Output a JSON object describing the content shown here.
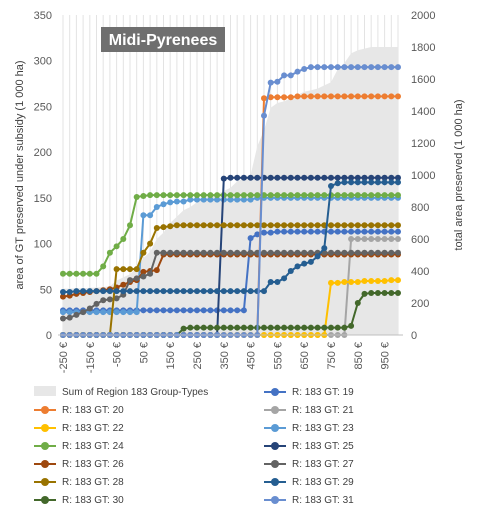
{
  "chart_data": {
    "type": "line",
    "title": "Midi-Pyrenees",
    "ylabel": "area of GT preserved under subsidy (1 000 ha)",
    "y2label": "total area preserved (1 000 ha)",
    "xlabel": "",
    "ylim": [
      0,
      350
    ],
    "y2lim": [
      0,
      2000
    ],
    "yticks": [
      0,
      50,
      100,
      150,
      200,
      250,
      300,
      350
    ],
    "y2ticks": [
      0,
      200,
      400,
      600,
      800,
      1000,
      1200,
      1400,
      1600,
      1800,
      2000
    ],
    "x": [
      -250,
      -225,
      -200,
      -175,
      -150,
      -125,
      -100,
      -75,
      -50,
      -25,
      0,
      25,
      50,
      75,
      100,
      125,
      150,
      175,
      200,
      225,
      250,
      275,
      300,
      325,
      350,
      375,
      400,
      425,
      450,
      475,
      500,
      525,
      550,
      575,
      600,
      625,
      650,
      675,
      700,
      725,
      750,
      775,
      800,
      825,
      850,
      875,
      900,
      925,
      950,
      975,
      1000
    ],
    "xtick_labels": [
      "-250 €",
      "-150 €",
      "-50 €",
      "50 €",
      "150 €",
      "250 €",
      "350 €",
      "450 €",
      "550 €",
      "650 €",
      "750 €",
      "850 €",
      "950 €"
    ],
    "xtick_values": [
      -250,
      -150,
      -50,
      50,
      150,
      250,
      350,
      450,
      550,
      650,
      750,
      850,
      950
    ],
    "legend_position": "bottom",
    "grid": "vertical",
    "area_series": {
      "name": "Sum of Region 183 Group-Types",
      "axis": "secondary",
      "color": "#e7e7e7",
      "values": [
        290,
        290,
        292,
        292,
        295,
        296,
        300,
        305,
        340,
        360,
        380,
        420,
        480,
        520,
        600,
        640,
        700,
        740,
        780,
        800,
        830,
        850,
        870,
        880,
        900,
        920,
        960,
        980,
        1000,
        1180,
        1280,
        1420,
        1450,
        1460,
        1480,
        1500,
        1520,
        1530,
        1540,
        1560,
        1580,
        1660,
        1700,
        1760,
        1780,
        1790,
        1800,
        1800,
        1800,
        1800,
        1800
      ]
    },
    "series": [
      {
        "name": "R: 183 GT: 19",
        "color": "#4472c4",
        "values": [
          27,
          27,
          27,
          27,
          27,
          27,
          27,
          27,
          27,
          27,
          27,
          27,
          27,
          27,
          27,
          27,
          27,
          27,
          27,
          27,
          27,
          27,
          27,
          27,
          27,
          27,
          27,
          27,
          106,
          110,
          112,
          112,
          113,
          113,
          113,
          113,
          113,
          113,
          113,
          113,
          113,
          113,
          113,
          113,
          113,
          113,
          113,
          113,
          113,
          113,
          113
        ]
      },
      {
        "name": "R: 183 GT: 20",
        "color": "#ed7d31",
        "values": [
          0,
          0,
          0,
          0,
          0,
          0,
          0,
          0,
          0,
          0,
          0,
          0,
          0,
          0,
          0,
          0,
          0,
          0,
          0,
          0,
          0,
          0,
          0,
          0,
          0,
          0,
          0,
          0,
          0,
          0,
          259,
          260,
          260,
          260,
          260,
          261,
          261,
          261,
          261,
          261,
          261,
          261,
          261,
          261,
          261,
          261,
          261,
          261,
          261,
          261,
          261
        ]
      },
      {
        "name": "R: 183 GT: 21",
        "color": "#a5a5a5",
        "values": [
          0,
          0,
          0,
          0,
          0,
          0,
          0,
          0,
          0,
          0,
          0,
          0,
          0,
          0,
          0,
          0,
          0,
          0,
          0,
          0,
          0,
          0,
          0,
          0,
          0,
          0,
          0,
          0,
          0,
          0,
          0,
          0,
          0,
          0,
          0,
          0,
          0,
          0,
          0,
          0,
          0,
          0,
          0,
          105,
          105,
          105,
          105,
          105,
          105,
          105,
          105
        ]
      },
      {
        "name": "R: 183 GT: 22",
        "color": "#ffc000",
        "values": [
          0,
          0,
          0,
          0,
          0,
          0,
          0,
          0,
          0,
          0,
          0,
          0,
          0,
          0,
          0,
          0,
          0,
          0,
          0,
          0,
          0,
          0,
          0,
          0,
          0,
          0,
          0,
          0,
          0,
          0,
          0,
          0,
          0,
          0,
          0,
          0,
          0,
          0,
          0,
          0,
          57,
          57,
          58,
          58,
          58,
          59,
          59,
          59,
          59,
          60,
          60
        ]
      },
      {
        "name": "R: 183 GT: 23",
        "color": "#5b9bd5",
        "values": [
          25,
          25,
          25,
          25,
          25,
          25,
          25,
          25,
          25,
          25,
          25,
          25,
          131,
          131,
          140,
          143,
          145,
          146,
          146,
          148,
          148,
          148,
          148,
          148,
          148,
          148,
          148,
          148,
          148,
          150,
          150,
          150,
          150,
          150,
          150,
          150,
          150,
          150,
          150,
          150,
          150,
          150,
          150,
          150,
          150,
          150,
          150,
          150,
          150,
          150,
          150
        ]
      },
      {
        "name": "R: 183 GT: 24",
        "color": "#70ad47",
        "values": [
          67,
          67,
          67,
          67,
          67,
          67,
          75,
          90,
          97,
          105,
          120,
          151,
          152,
          153,
          153,
          153,
          153,
          153,
          153,
          153,
          153,
          153,
          153,
          153,
          153,
          153,
          153,
          153,
          153,
          153,
          153,
          153,
          153,
          153,
          153,
          153,
          153,
          153,
          153,
          153,
          153,
          153,
          153,
          153,
          153,
          153,
          153,
          153,
          153,
          153,
          153
        ]
      },
      {
        "name": "R: 183 GT: 25",
        "color": "#264478",
        "values": [
          0,
          0,
          0,
          0,
          0,
          0,
          0,
          0,
          0,
          0,
          0,
          0,
          0,
          0,
          0,
          0,
          0,
          0,
          0,
          0,
          0,
          0,
          0,
          0,
          171,
          172,
          172,
          172,
          172,
          172,
          172,
          172,
          172,
          172,
          172,
          172,
          172,
          172,
          172,
          172,
          172,
          172,
          172,
          172,
          172,
          172,
          172,
          172,
          172,
          172,
          172
        ]
      },
      {
        "name": "R: 183 GT: 26",
        "color": "#9e480e",
        "values": [
          42,
          43,
          45,
          46,
          47,
          48,
          49,
          50,
          52,
          55,
          58,
          60,
          69,
          70,
          71,
          88,
          88,
          88,
          88,
          88,
          88,
          88,
          88,
          88,
          88,
          88,
          88,
          88,
          88,
          88,
          88,
          88,
          88,
          88,
          88,
          88,
          88,
          88,
          88,
          88,
          88,
          88,
          88,
          88,
          88,
          88,
          88,
          88,
          88,
          88,
          88
        ]
      },
      {
        "name": "R: 183 GT: 27",
        "color": "#636363",
        "values": [
          18,
          19,
          22,
          25,
          29,
          34,
          38,
          39,
          40,
          44,
          60,
          62,
          64,
          67,
          90,
          90,
          90,
          90,
          90,
          90,
          90,
          90,
          90,
          90,
          90,
          90,
          90,
          90,
          90,
          90,
          90,
          90,
          90,
          90,
          90,
          90,
          90,
          90,
          90,
          90,
          90,
          90,
          90,
          90,
          90,
          90,
          90,
          90,
          90,
          90,
          90
        ]
      },
      {
        "name": "R: 183 GT: 28",
        "color": "#997300",
        "values": [
          0,
          0,
          0,
          0,
          0,
          0,
          0,
          0,
          72,
          72,
          72,
          72,
          90,
          100,
          117,
          118,
          119,
          120,
          120,
          120,
          120,
          120,
          120,
          120,
          120,
          120,
          120,
          120,
          120,
          120,
          120,
          120,
          120,
          120,
          120,
          120,
          120,
          120,
          120,
          120,
          120,
          120,
          120,
          120,
          120,
          120,
          120,
          120,
          120,
          120,
          120
        ]
      },
      {
        "name": "R: 183 GT: 29",
        "color": "#255e91",
        "values": [
          47,
          47,
          48,
          48,
          48,
          48,
          48,
          48,
          48,
          48,
          48,
          48,
          48,
          48,
          48,
          48,
          48,
          48,
          48,
          48,
          48,
          48,
          48,
          48,
          48,
          48,
          48,
          48,
          48,
          48,
          48,
          58,
          58,
          62,
          70,
          75,
          78,
          80,
          86,
          95,
          163,
          166,
          167,
          167,
          167,
          167,
          167,
          167,
          167,
          167,
          167
        ]
      },
      {
        "name": "R: 183 GT: 30",
        "color": "#43682b",
        "values": [
          0,
          0,
          0,
          0,
          0,
          0,
          0,
          0,
          0,
          0,
          0,
          0,
          0,
          0,
          0,
          0,
          0,
          0,
          7,
          8,
          8,
          8,
          8,
          8,
          8,
          8,
          8,
          8,
          8,
          8,
          8,
          8,
          8,
          8,
          8,
          8,
          8,
          8,
          8,
          8,
          8,
          8,
          8,
          10,
          35,
          45,
          46,
          46,
          46,
          46,
          46
        ]
      },
      {
        "name": "R: 183 GT: 31",
        "color": "#698ed0",
        "values": [
          0,
          0,
          0,
          0,
          0,
          0,
          0,
          0,
          0,
          0,
          0,
          0,
          0,
          0,
          0,
          0,
          0,
          0,
          0,
          0,
          0,
          0,
          0,
          0,
          0,
          0,
          0,
          0,
          0,
          0,
          240,
          276,
          277,
          284,
          284,
          288,
          291,
          293,
          293,
          293,
          293,
          293,
          293,
          293,
          293,
          293,
          293,
          293,
          293,
          293,
          293
        ]
      }
    ]
  }
}
